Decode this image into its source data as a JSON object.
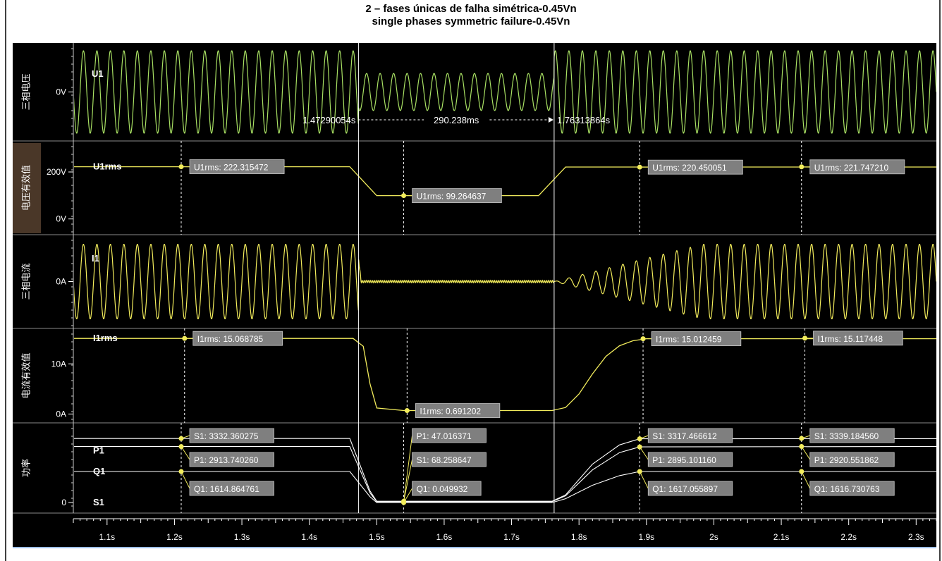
{
  "title_line1": "2 – fases únicas de falha simétrica-0.45Vn",
  "title_line2": "single phases symmetric failure-0.45Vn",
  "colors": {
    "background": "#000000",
    "voltage": "#a8e063",
    "signal": "#f2ec5c",
    "label_box": "#7f7f7f",
    "selected_panel_label": "#4a3728",
    "axis_text": "#ffffff"
  },
  "chart_data": {
    "type": "line",
    "x_axis": {
      "unit": "s",
      "range": [
        1.05,
        2.33
      ],
      "tick_labels": [
        "1.1s",
        "1.2s",
        "1.3s",
        "1.4s",
        "1.5s",
        "1.6s",
        "1.7s",
        "1.8s",
        "1.9s",
        "2s",
        "2.1s",
        "2.2s",
        "2.3s"
      ],
      "tick_values": [
        1.1,
        1.2,
        1.3,
        1.4,
        1.5,
        1.6,
        1.7,
        1.8,
        1.9,
        2.0,
        2.1,
        2.2,
        2.3
      ]
    },
    "cursors": {
      "t1_label": "1.47290054s",
      "t2_label": "1.76313864s",
      "delta_label": "290.238ms",
      "t1": 1.4729,
      "t2": 1.7631
    },
    "panels": [
      {
        "label": "三相电压",
        "series_name": "U1",
        "kind": "sine",
        "ytick_labels": [
          "0V"
        ],
        "ytick_values": [
          0
        ],
        "yrange": [
          -1.12,
          1.12
        ],
        "segments": [
          {
            "from": 1.05,
            "to": 1.4729,
            "amplitude": 1.0
          },
          {
            "from": 1.4729,
            "to": 1.7631,
            "amplitude": 0.45
          },
          {
            "from": 1.7631,
            "to": 2.33,
            "amplitude": 1.0
          }
        ],
        "frequency_hz": 50
      },
      {
        "label": "电压有效值",
        "series_name": "U1rms",
        "kind": "rms",
        "ytick_labels": [
          "200V",
          "0V"
        ],
        "ytick_values": [
          200,
          0
        ],
        "yrange": [
          -55,
          320
        ],
        "levels": [
          222.3,
          99.3,
          220.5
        ],
        "series": [
          {
            "name": "U1rms",
            "x": [
              1.05,
              1.46,
              1.5,
              1.74,
              1.78,
              2.33
            ],
            "y": [
              222.3,
              222.3,
              99.3,
              99.3,
              221.0,
              221.0
            ]
          }
        ],
        "markers": [
          {
            "x": 1.21,
            "text": "U1rms: 222.315472",
            "value": 222.3
          },
          {
            "x": 1.54,
            "text": "U1rms: 99.264637",
            "value": 99.3
          },
          {
            "x": 1.89,
            "text": "U1rms: 220.450051",
            "value": 220.5
          },
          {
            "x": 2.13,
            "text": "U1rms: 221.747210",
            "value": 221.7
          }
        ]
      },
      {
        "label": "三相电流",
        "series_name": "I1",
        "kind": "current",
        "ytick_labels": [
          "0A"
        ],
        "ytick_values": [
          0
        ],
        "yrange": [
          -1.12,
          1.12
        ],
        "frequency_hz": 50
      },
      {
        "label": "电流有效值",
        "series_name": "I1rms",
        "kind": "rms",
        "ytick_labels": [
          "10A",
          "0A"
        ],
        "ytick_values": [
          10,
          0
        ],
        "yrange": [
          -1.2,
          16.5
        ],
        "series": [
          {
            "name": "I1rms",
            "x": [
              1.05,
              1.465,
              1.48,
              1.49,
              1.5,
              1.54,
              1.76,
              1.78,
              1.8,
              1.82,
              1.84,
              1.86,
              1.88,
              1.9,
              2.33
            ],
            "y": [
              15.07,
              15.07,
              13.5,
              6.0,
              1.2,
              0.69,
              0.69,
              1.3,
              4.0,
              8.0,
              11.5,
              13.6,
              14.6,
              15.01,
              15.01
            ]
          }
        ],
        "markers": [
          {
            "x": 1.215,
            "text": "I1rms: 15.068785",
            "value": 15.07
          },
          {
            "x": 1.545,
            "text": "I1rms: 0.691202",
            "value": 0.69
          },
          {
            "x": 1.895,
            "text": "I1rms: 15.012459",
            "value": 15.01
          },
          {
            "x": 2.135,
            "text": "I1rms: 15.117448",
            "value": 15.12
          }
        ]
      },
      {
        "label": "功率",
        "kind": "power",
        "ytick_labels": [
          "0"
        ],
        "ytick_values": [
          0
        ],
        "yrange": [
          -400,
          4000
        ],
        "series": [
          {
            "name": "S1",
            "x": [
              1.05,
              1.46,
              1.49,
              1.5,
              1.76,
              1.78,
              1.82,
              1.86,
              1.89,
              2.33
            ],
            "y": [
              3332,
              3332,
              600,
              68,
              68,
              400,
              2000,
              3000,
              3317,
              3325
            ]
          },
          {
            "name": "P1",
            "x": [
              1.05,
              1.46,
              1.49,
              1.5,
              1.76,
              1.78,
              1.82,
              1.86,
              1.89,
              2.33
            ],
            "y": [
              2914,
              2914,
              500,
              47,
              47,
              350,
              1700,
              2600,
              2895,
              2920
            ]
          },
          {
            "name": "Q1",
            "x": [
              1.05,
              1.46,
              1.49,
              1.5,
              1.76,
              1.78,
              1.82,
              1.86,
              1.89,
              2.33
            ],
            "y": [
              1615,
              1615,
              300,
              0.05,
              0.05,
              200,
              900,
              1400,
              1617,
              1617
            ]
          }
        ],
        "marker_groups": [
          {
            "x": 1.21,
            "labels": [
              "S1: 3332.360275",
              "P1: 2913.740260",
              "Q1: 1614.864761"
            ],
            "values": [
              3332.36,
              2913.74,
              1614.86
            ]
          },
          {
            "x": 1.54,
            "labels": [
              "P1: 47.016371",
              "S1: 68.258647",
              "Q1: 0.049932"
            ],
            "values": [
              47.02,
              68.26,
              0.05
            ]
          },
          {
            "x": 1.89,
            "labels": [
              "S1: 3317.466612",
              "P1: 2895.101160",
              "Q1: 1617.055897"
            ],
            "values": [
              3317.47,
              2895.1,
              1617.06
            ]
          },
          {
            "x": 2.13,
            "labels": [
              "S1: 3339.184560",
              "P1: 2920.551862",
              "Q1: 1616.730763"
            ],
            "values": [
              3339.18,
              2920.55,
              1616.73
            ]
          }
        ]
      }
    ]
  }
}
